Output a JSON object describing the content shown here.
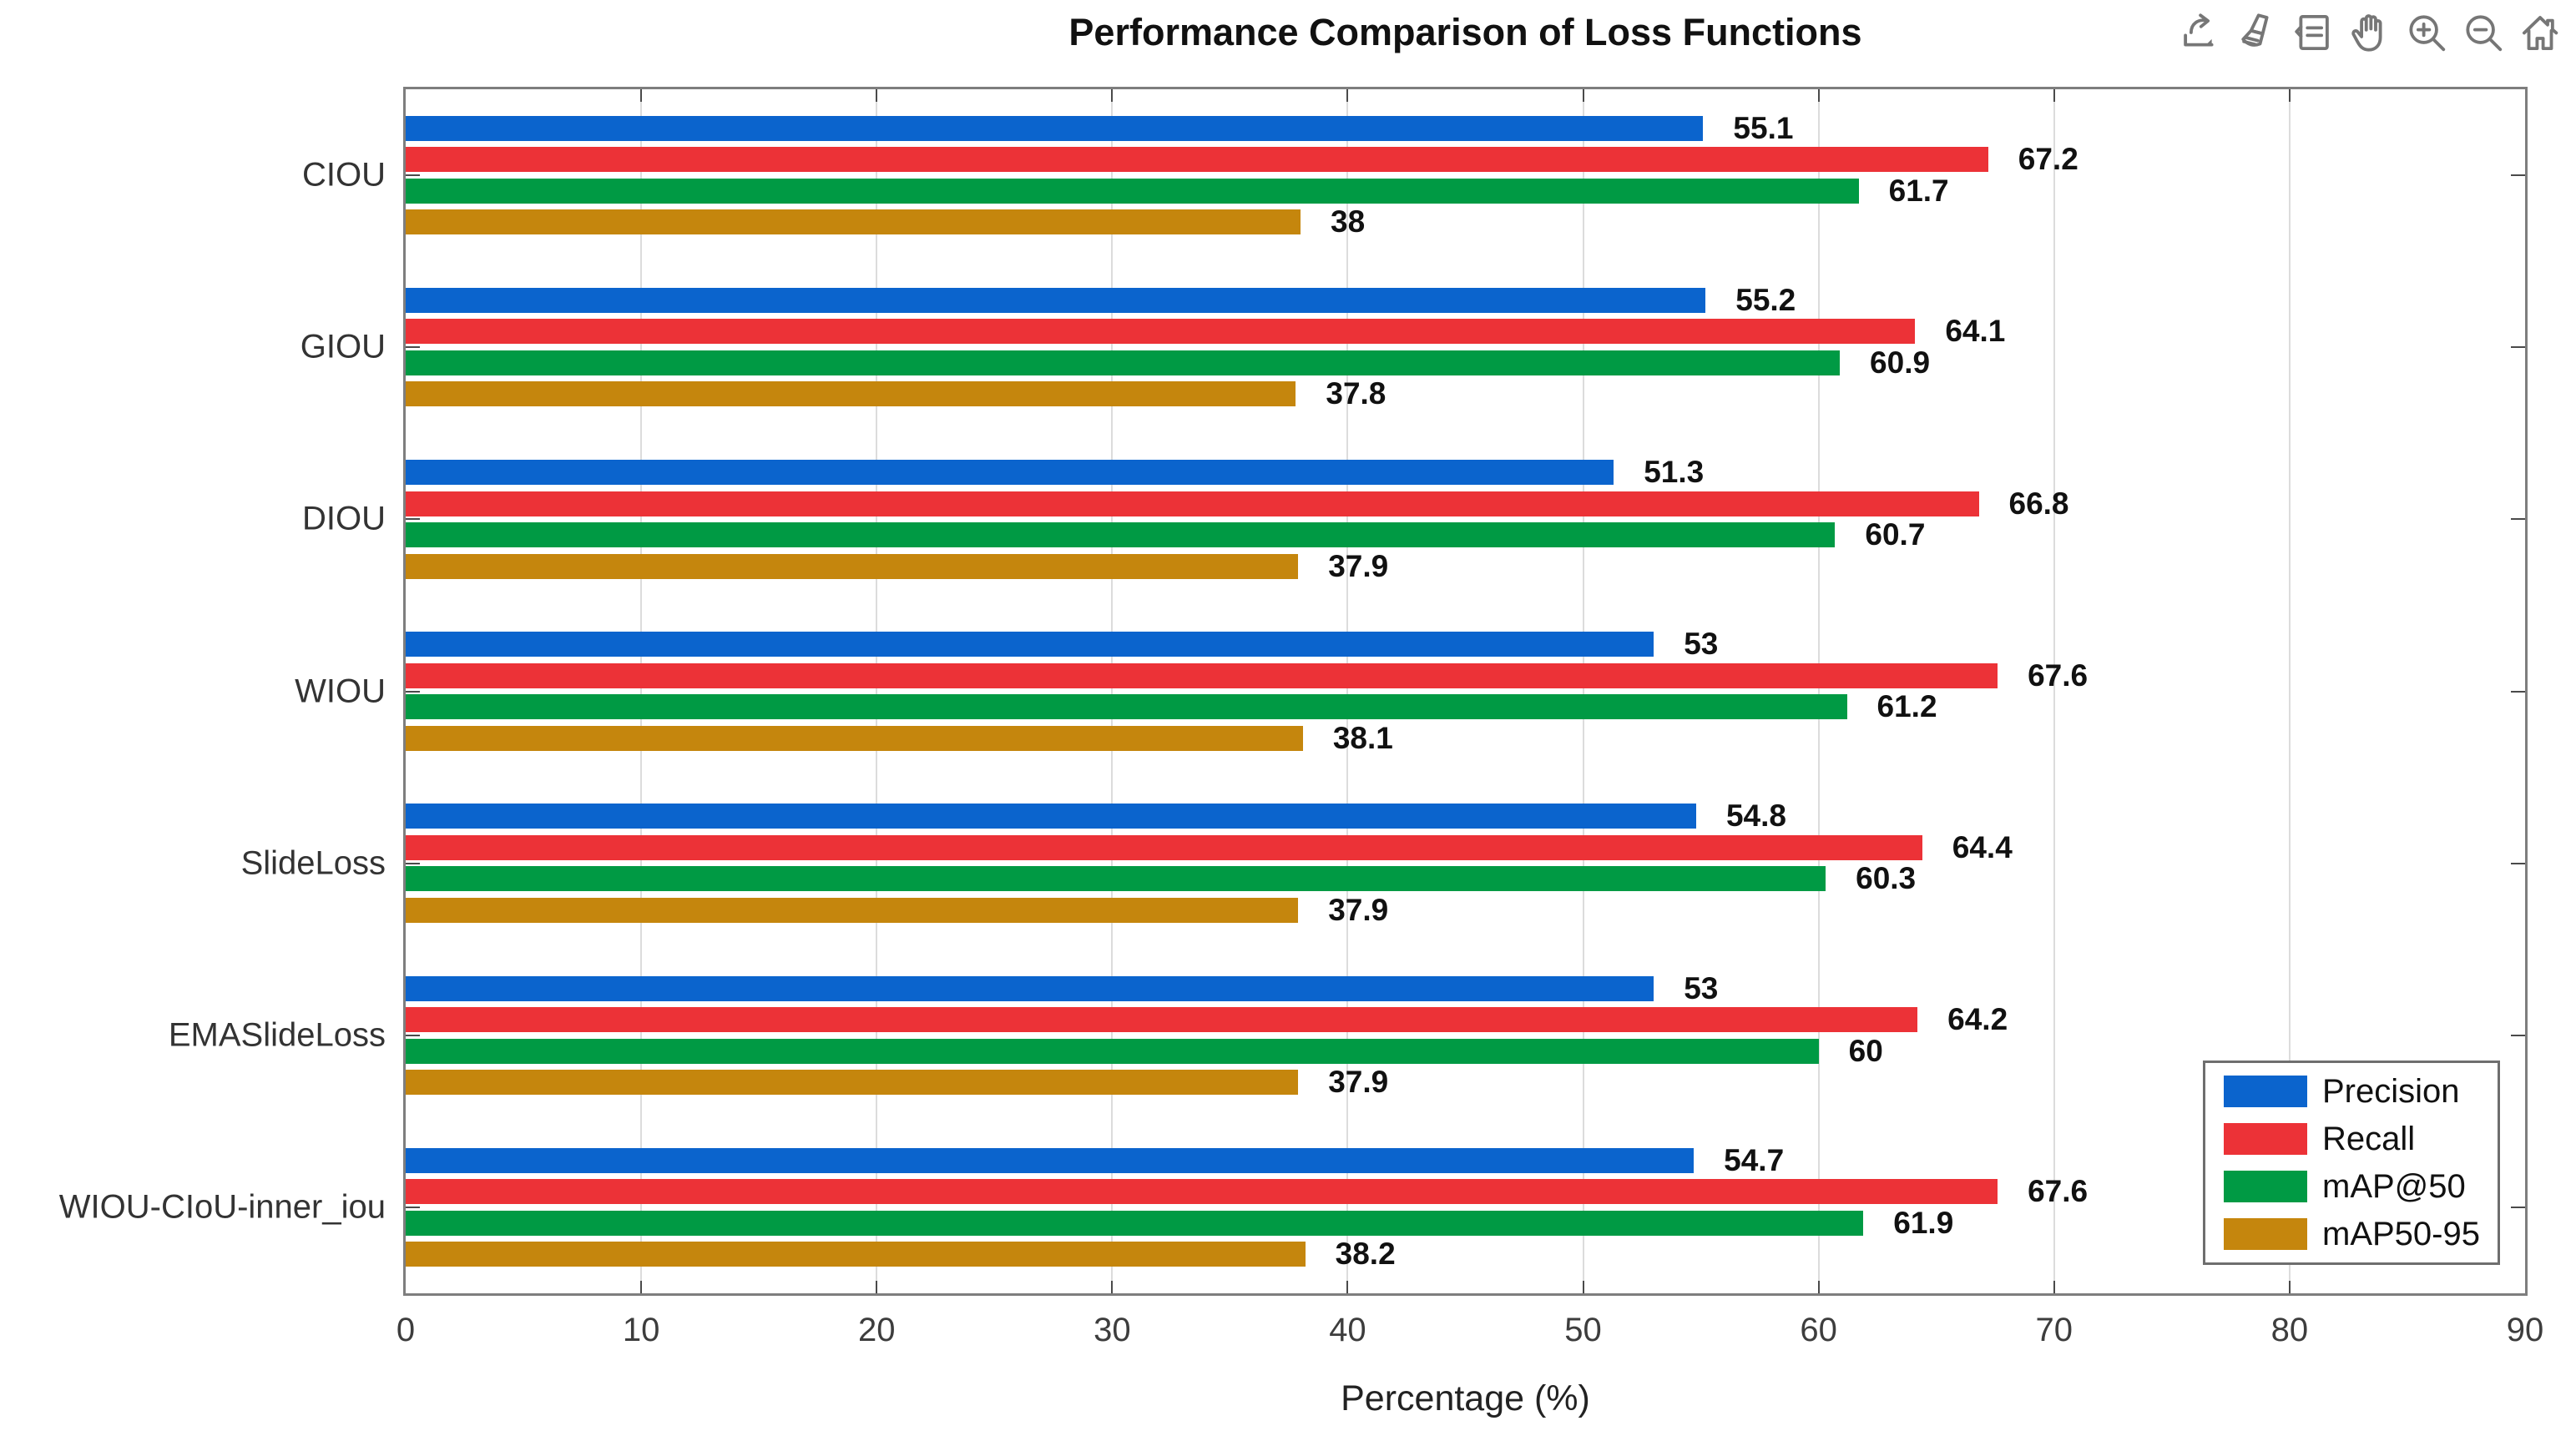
{
  "toolbar": {
    "icons": [
      {
        "name": "export-icon"
      },
      {
        "name": "brush-icon"
      },
      {
        "name": "datatips-icon"
      },
      {
        "name": "pan-icon"
      },
      {
        "name": "zoom-in-icon"
      },
      {
        "name": "zoom-out-icon"
      },
      {
        "name": "home-icon"
      }
    ]
  },
  "chart_data": {
    "type": "bar",
    "orientation": "horizontal",
    "title": "Performance Comparison of Loss Functions",
    "xlabel": "Percentage (%)",
    "xlim": [
      0,
      90
    ],
    "xticks": [
      0,
      10,
      20,
      30,
      40,
      50,
      60,
      70,
      80,
      90
    ],
    "grid": "vertical",
    "legend_position": "lower right",
    "categories": [
      "CIOU",
      "GIOU",
      "DIOU",
      "WIOU",
      "SlideLoss",
      "EMASlideLoss",
      "WIOU-CIoU-inner_iou"
    ],
    "series": [
      {
        "name": "Precision",
        "color": "#0b64cd",
        "values": [
          55.1,
          55.2,
          51.3,
          53,
          54.8,
          53,
          54.7
        ],
        "labels": [
          "55.1",
          "55.2",
          "51.3",
          "53",
          "54.8",
          "53",
          "54.7"
        ]
      },
      {
        "name": "Recall",
        "color": "#ec3237",
        "values": [
          67.2,
          64.1,
          66.8,
          67.6,
          64.4,
          64.2,
          67.6
        ],
        "labels": [
          "67.2",
          "64.1",
          "66.8",
          "67.6",
          "64.4",
          "64.2",
          "67.6"
        ]
      },
      {
        "name": "mAP@50",
        "color": "#009a44",
        "values": [
          61.7,
          60.9,
          60.7,
          61.2,
          60.3,
          60,
          61.9
        ],
        "labels": [
          "61.7",
          "60.9",
          "60.7",
          "61.2",
          "60.3",
          "60",
          "61.9"
        ]
      },
      {
        "name": "mAP50-95",
        "color": "#c5860d",
        "values": [
          38,
          37.8,
          37.9,
          38.1,
          37.9,
          37.9,
          38.2
        ],
        "labels": [
          "38",
          "37.8",
          "37.9",
          "38.1",
          "37.9",
          "37.9",
          "38.2"
        ]
      }
    ]
  }
}
